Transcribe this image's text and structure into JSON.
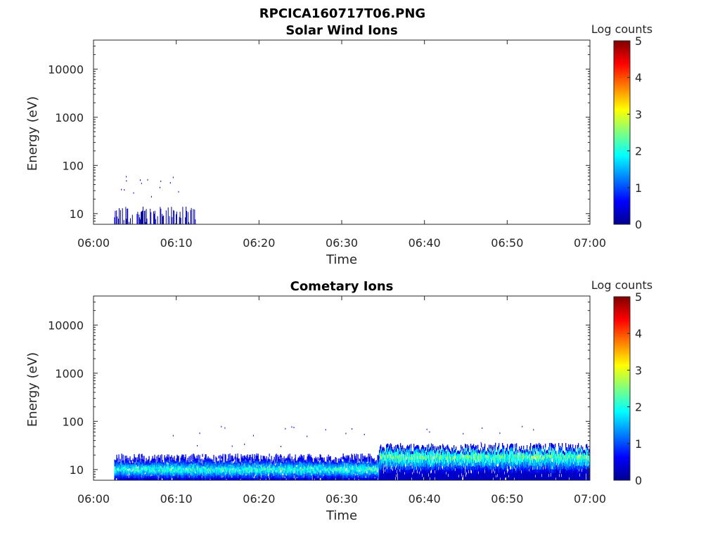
{
  "figure_title": "RPCICA160717T06.PNG",
  "chart_data": [
    {
      "type": "heatmap",
      "title": "Solar Wind Ions",
      "xlabel": "Time",
      "ylabel": "Energy (eV)",
      "x_ticks": [
        "06:00",
        "06:10",
        "06:20",
        "06:30",
        "06:40",
        "06:50",
        "07:00"
      ],
      "xlim_minutes": [
        0,
        60
      ],
      "y_scale": "log",
      "ylim": [
        6,
        40000
      ],
      "y_ticks": [
        10,
        100,
        1000,
        10000
      ],
      "y_tick_labels": [
        "10",
        "100",
        "1000",
        "10000"
      ],
      "colorbar_label": "Log counts",
      "colorbar_ticks": [
        "0",
        "1",
        "2",
        "3",
        "4",
        "5"
      ],
      "clim": [
        0,
        5
      ],
      "grid": false,
      "features": [
        {
          "t_start_min": 2.5,
          "t_end_min": 12.3,
          "e_low": 6,
          "e_high": 14,
          "log_counts": 0.3,
          "description": "sparse low-energy counts"
        }
      ]
    },
    {
      "type": "heatmap",
      "title": "Cometary Ions",
      "xlabel": "Time",
      "ylabel": "Energy (eV)",
      "x_ticks": [
        "06:00",
        "06:10",
        "06:20",
        "06:30",
        "06:40",
        "06:50",
        "07:00"
      ],
      "xlim_minutes": [
        0,
        60
      ],
      "y_scale": "log",
      "ylim": [
        6,
        40000
      ],
      "y_ticks": [
        10,
        100,
        1000,
        10000
      ],
      "y_tick_labels": [
        "10",
        "100",
        "1000",
        "10000"
      ],
      "colorbar_label": "Log counts",
      "colorbar_ticks": [
        "0",
        "1",
        "2",
        "3",
        "4",
        "5"
      ],
      "clim": [
        0,
        5
      ],
      "grid": false,
      "features": [
        {
          "t_start_min": 2.5,
          "t_end_min": 34.5,
          "e_low": 6,
          "e_high": 18,
          "peak_energy": 10,
          "peak_log_counts": 2.2
        },
        {
          "t_start_min": 34.5,
          "t_end_min": 60,
          "e_low": 6,
          "e_high": 30,
          "peak_energy": 18,
          "peak_log_counts": 2.4
        }
      ]
    }
  ],
  "colors": {
    "background": "#ffffff",
    "axis": "#262626"
  }
}
